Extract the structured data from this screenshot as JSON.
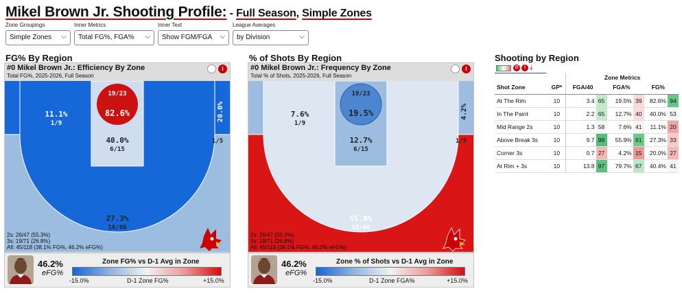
{
  "header": {
    "title_main": "Mikel Brown Jr. Shooting Profile:",
    "title_dash": " - ",
    "title_season": "Full Season",
    "title_comma": ", ",
    "title_zones": "Simple Zones"
  },
  "controls": [
    {
      "label": "Zone Groupings",
      "value": "Simple Zones"
    },
    {
      "label": "Inner Metrics",
      "value": "Total FG%, FGA%"
    },
    {
      "label": "Inner Text",
      "value": "Show FGM/FGA"
    },
    {
      "label": "League Averages",
      "value": "by Division"
    }
  ],
  "left": {
    "section_title": "FG% By Region",
    "panel_title": "#0 Mikel Brown Jr.: Efficiency By Zone",
    "panel_sub": "Total FG%, 2025-2026, Full Season",
    "zones": {
      "rim_frac": "19/23",
      "rim_pct": "82.6%",
      "paint_pct": "40.0%",
      "paint_frac": "6/15",
      "mid_pct": "11.1%",
      "mid_frac": "1/9",
      "corner_pct": "20.0%",
      "corner_frac": "1/5",
      "three_pct": "27.3%",
      "three_frac": "18/66"
    },
    "totals": [
      "2s: 26/47 (55.3%)",
      "3s: 19/71 (26.8%)",
      "All: 45/118 (38.1% FG%, 46.2% eFG%)"
    ],
    "efg_value": "46.2%",
    "efg_label": "eFG%",
    "legend_title": "Zone FG% vs D-1 Avg in Zone",
    "legend_min": "-15.0%",
    "legend_mid": "D-1 Zone FG%",
    "legend_max": "+15.0%"
  },
  "middle": {
    "section_title": "% of Shots By Region",
    "panel_title": "#0 Mikel Brown Jr.: Frequency By Zone",
    "panel_sub": "Total % of Shots, 2025-2026, Full Season",
    "zones": {
      "rim_frac": "19/23",
      "rim_pct": "19.5%",
      "paint_pct": "12.7%",
      "paint_frac": "6/15",
      "mid_pct": "7.6%",
      "mid_frac": "1/9",
      "corner_pct": "4.2%",
      "corner_frac": "1/5",
      "three_pct": "55.9%",
      "three_frac": "18/66"
    },
    "totals": [
      "2s: 26/47 (55.3%)",
      "3s: 19/71 (26.8%)",
      "All: 45/118 (38.1% FG%, 46.2% eFG%)"
    ],
    "efg_value": "46.2%",
    "efg_label": "eFG%",
    "legend_title": "Zone % of Shots vs D-1 Avg in Zone",
    "legend_min": "-15.0%",
    "legend_mid": "D-1 Zone FGA%",
    "legend_max": "+15.0%"
  },
  "table": {
    "section_title": "Shooting by Region",
    "group_header": "Zone Metrics",
    "columns": [
      "Shot Zone",
      "GP*",
      "FGA/40",
      "FGA%",
      "FG%"
    ],
    "rows": [
      {
        "zone": "At The Rim",
        "gp": "10",
        "fga40": "3.4",
        "fga40_pct": "65",
        "fgap": "19.5%",
        "fgap_pct": "39",
        "fg": "82.6%",
        "fg_pct": "94"
      },
      {
        "zone": "In The Paint",
        "gp": "10",
        "fga40": "2.2",
        "fga40_pct": "65",
        "fgap": "12.7%",
        "fgap_pct": "40",
        "fg": "40.0%",
        "fg_pct": "53"
      },
      {
        "zone": "Mid Range 2s",
        "gp": "10",
        "fga40": "1.3",
        "fga40_pct": "58",
        "fgap": "7.6%",
        "fgap_pct": "41",
        "fg": "11.1%",
        "fg_pct": "20"
      },
      {
        "zone": "Above Break 3s",
        "gp": "10",
        "fga40": "9.7",
        "fga40_pct": "99",
        "fgap": "55.9%",
        "fgap_pct": "91",
        "fg": "27.3%",
        "fg_pct": "33"
      },
      {
        "zone": "Corner 3s",
        "gp": "10",
        "fga40": "0.7",
        "fga40_pct": "27",
        "fgap": "4.2%",
        "fgap_pct": "15",
        "fg": "20.0%",
        "fg_pct": "27"
      },
      {
        "zone": "At Rim + 3s",
        "gp": "10",
        "fga40": "13.8",
        "fga40_pct": "97",
        "fgap": "79.7%",
        "fgap_pct": "67",
        "fg": "40.4%",
        "fg_pct": "41"
      }
    ]
  },
  "colors": {
    "accent_red": "#cc0000",
    "deep_blue": "#1668d8",
    "light_blue": "#9cbde0",
    "pale_blue": "#cfddef",
    "green": "#4fbf7a"
  }
}
